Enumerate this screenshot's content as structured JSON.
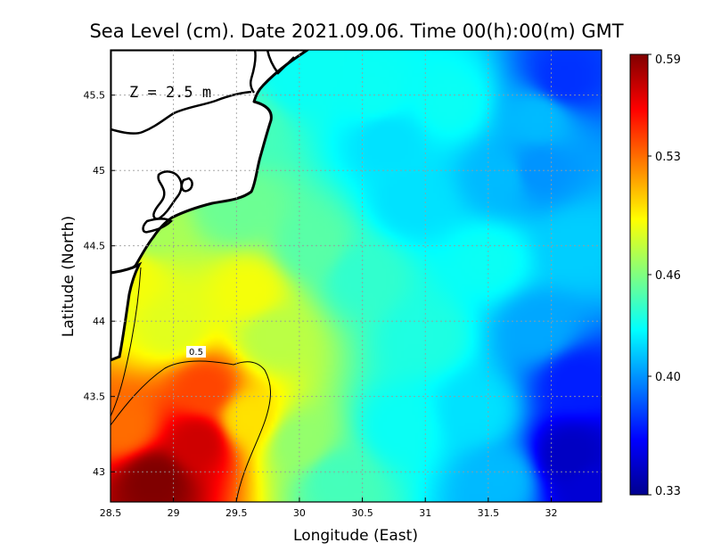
{
  "chart_data": {
    "type": "heatmap",
    "title": "Sea Level (cm). Date 2021.09.06. Time 00(h):00(m) GMT",
    "xlabel": "Longitude (East)",
    "ylabel": "Latitude (North)",
    "xlim": [
      28.5,
      32.4
    ],
    "ylim": [
      42.8,
      45.8
    ],
    "x_ticks": [
      "28.5",
      "29",
      "29.5",
      "30",
      "30.5",
      "31",
      "31.5",
      "32"
    ],
    "y_ticks": [
      "43",
      "43.5",
      "44",
      "44.5",
      "45",
      "45.5"
    ],
    "grid": true,
    "annotation": "Z = 2.5 m",
    "contour_label": "0.5",
    "colorbar": {
      "min": 0.33,
      "max": 0.59,
      "ticks": [
        "0.59",
        "0.53",
        "0.46",
        "0.40",
        "0.33"
      ],
      "colors": [
        "#00008f",
        "#0000ff",
        "#0080ff",
        "#00ffff",
        "#80ff80",
        "#ffff00",
        "#ff8000",
        "#ff0000",
        "#800000"
      ]
    },
    "field_points": [
      {
        "lon": 28.85,
        "lat": 42.95,
        "value": 0.59
      },
      {
        "lon": 29.2,
        "lat": 43.2,
        "value": 0.57
      },
      {
        "lon": 29.25,
        "lat": 43.55,
        "value": 0.54
      },
      {
        "lon": 28.6,
        "lat": 43.3,
        "value": 0.53
      },
      {
        "lon": 29.6,
        "lat": 43.35,
        "value": 0.5
      },
      {
        "lon": 28.65,
        "lat": 44.3,
        "value": 0.49
      },
      {
        "lon": 29.6,
        "lat": 44.2,
        "value": 0.49
      },
      {
        "lon": 29.0,
        "lat": 43.95,
        "value": 0.485
      },
      {
        "lon": 28.8,
        "lat": 44.6,
        "value": 0.47
      },
      {
        "lon": 29.8,
        "lat": 43.9,
        "value": 0.475
      },
      {
        "lon": 30.0,
        "lat": 43.2,
        "value": 0.465
      },
      {
        "lon": 30.3,
        "lat": 42.95,
        "value": 0.445
      },
      {
        "lon": 29.5,
        "lat": 44.75,
        "value": 0.455
      },
      {
        "lon": 29.6,
        "lat": 45.3,
        "value": 0.445
      },
      {
        "lon": 30.1,
        "lat": 44.5,
        "value": 0.45
      },
      {
        "lon": 30.5,
        "lat": 44.3,
        "value": 0.44
      },
      {
        "lon": 30.9,
        "lat": 44.8,
        "value": 0.42
      },
      {
        "lon": 30.0,
        "lat": 45.6,
        "value": 0.43
      },
      {
        "lon": 30.6,
        "lat": 45.5,
        "value": 0.43
      },
      {
        "lon": 30.7,
        "lat": 45.2,
        "value": 0.42
      },
      {
        "lon": 31.2,
        "lat": 45.45,
        "value": 0.43
      },
      {
        "lon": 31.0,
        "lat": 43.9,
        "value": 0.435
      },
      {
        "lon": 30.8,
        "lat": 43.3,
        "value": 0.43
      },
      {
        "lon": 31.4,
        "lat": 43.4,
        "value": 0.42
      },
      {
        "lon": 31.5,
        "lat": 44.4,
        "value": 0.43
      },
      {
        "lon": 31.6,
        "lat": 44.95,
        "value": 0.41
      },
      {
        "lon": 31.9,
        "lat": 45.0,
        "value": 0.4
      },
      {
        "lon": 32.1,
        "lat": 45.6,
        "value": 0.375
      },
      {
        "lon": 31.9,
        "lat": 45.35,
        "value": 0.41
      },
      {
        "lon": 32.2,
        "lat": 44.5,
        "value": 0.415
      },
      {
        "lon": 31.9,
        "lat": 43.95,
        "value": 0.405
      },
      {
        "lon": 32.2,
        "lat": 43.6,
        "value": 0.37
      },
      {
        "lon": 32.15,
        "lat": 43.1,
        "value": 0.345
      },
      {
        "lon": 32.3,
        "lat": 42.9,
        "value": 0.35
      },
      {
        "lon": 31.6,
        "lat": 42.95,
        "value": 0.41
      }
    ]
  }
}
